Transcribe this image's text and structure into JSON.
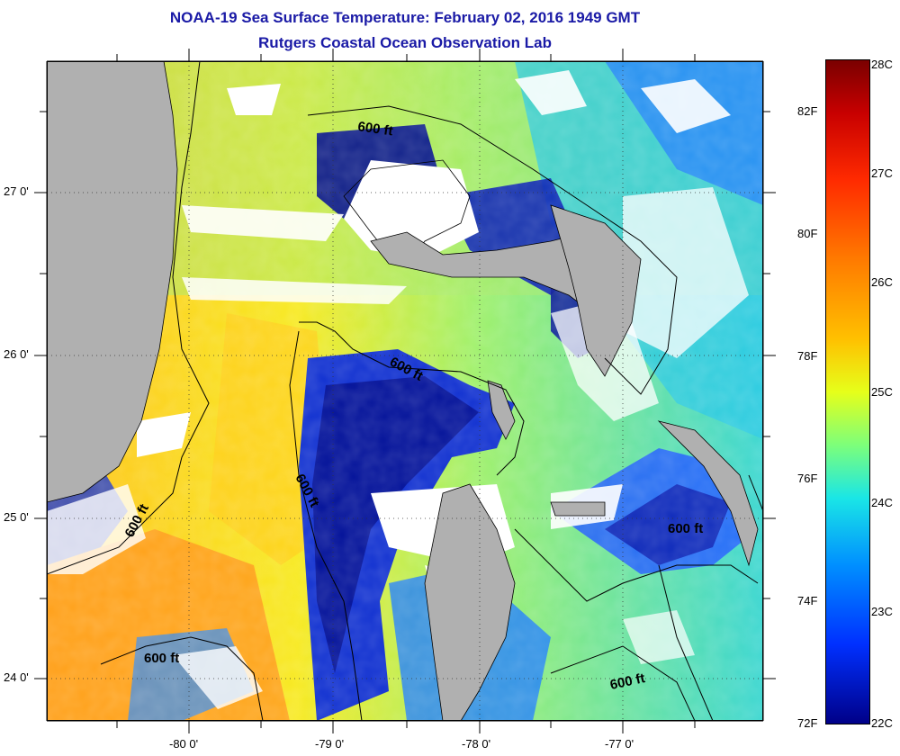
{
  "title": "NOAA-19 Sea Surface Temperature:  February 02, 2016 1949 GMT",
  "subtitle": "Rutgers Coastal Ocean Observation Lab",
  "lat_labels": [
    "27 0'",
    "26 0'",
    "25 0'",
    "24 0'"
  ],
  "lon_labels": [
    "-80 0'",
    "-79 0'",
    "-78 0'",
    "-77 0'"
  ],
  "contour_label": "600 ft",
  "colorbar": {
    "celsius": [
      "28C",
      "27C",
      "26C",
      "25C",
      "24C",
      "23C",
      "22C"
    ],
    "fahrenheit": [
      "82F",
      "80F",
      "78F",
      "76F",
      "74F",
      "72F"
    ]
  },
  "colors": {
    "title": "#1a1aa6",
    "land": "#b0b0b0",
    "cloud": "#ffffff"
  }
}
